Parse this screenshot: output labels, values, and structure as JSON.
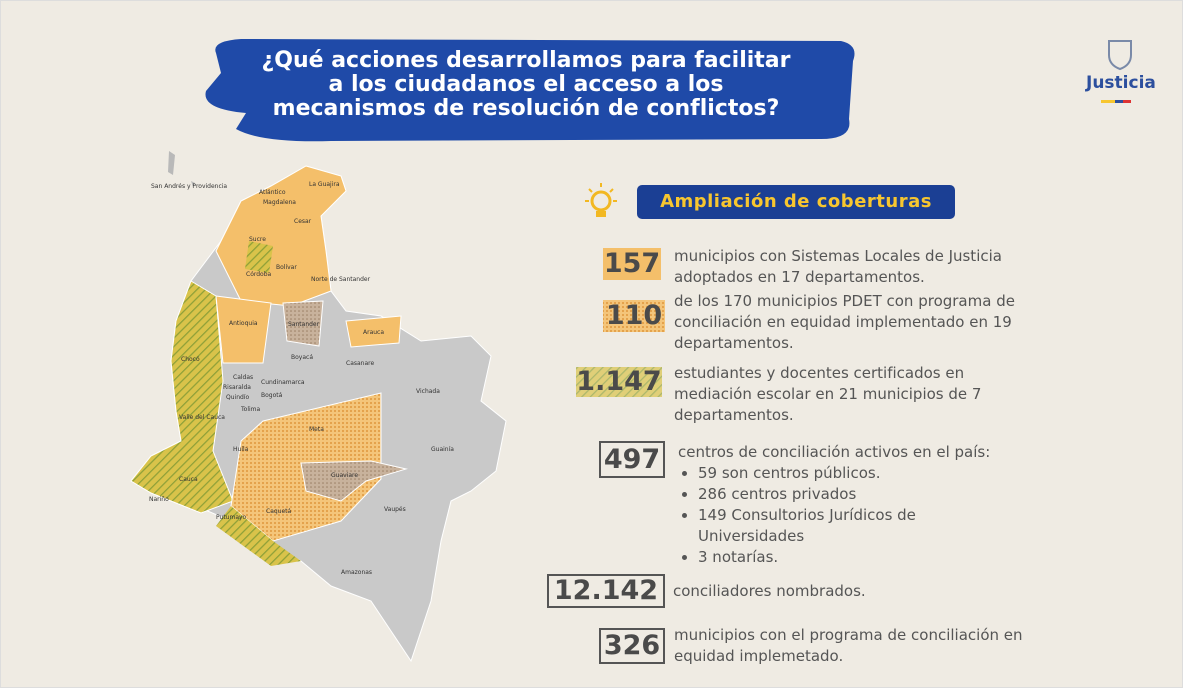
{
  "header": {
    "title_lines": [
      "¿Qué acciones desarrollamos para facilitar",
      "a los ciudadanos el acceso a los",
      "mecanismos de resolución de conflictos?"
    ],
    "logo": "Justicia"
  },
  "section": {
    "title": "Ampliación de coberturas"
  },
  "stats": [
    {
      "number": "157",
      "text": "municipios con Sistemas Locales de Justicia adoptados en 17 departamentos."
    },
    {
      "number": "110",
      "text": "de los 170 municipios PDET con programa de conciliación en equidad implementado en 19 departamentos."
    },
    {
      "number": "1.147",
      "text": "estudiantes y docentes certificados en mediación escolar en 21 municipios de 7 departamentos."
    },
    {
      "number": "497",
      "text": "centros de conciliación activos en el país:",
      "items": [
        "59 son centros públicos.",
        "286 centros privados",
        "149 Consultorios Jurídicos de Universidades",
        "3 notarías."
      ]
    },
    {
      "number": "12.142",
      "text": "conciliadores nombrados."
    },
    {
      "number": "326",
      "text": "municipios con el programa de conciliación en equidad implemetado."
    }
  ],
  "map": {
    "labels": [
      "San Andrés y Providencia",
      "Atlántico",
      "Magdalena",
      "La Guajira",
      "Cesar",
      "Sucre",
      "Bolívar",
      "Córdoba",
      "Norte de Santander",
      "Antioquia",
      "Santander",
      "Arauca",
      "Chocó",
      "Boyacá",
      "Casanare",
      "Caldas",
      "Risaralda",
      "Cundinamarca",
      "Quindío",
      "Bogotá",
      "Tolima",
      "Vichada",
      "Valle del Cauca",
      "Huila",
      "Meta",
      "Guainía",
      "Cauca",
      "Guaviare",
      "Nariño",
      "Putumayo",
      "Caquetá",
      "Vaupés",
      "Amazonas"
    ]
  }
}
